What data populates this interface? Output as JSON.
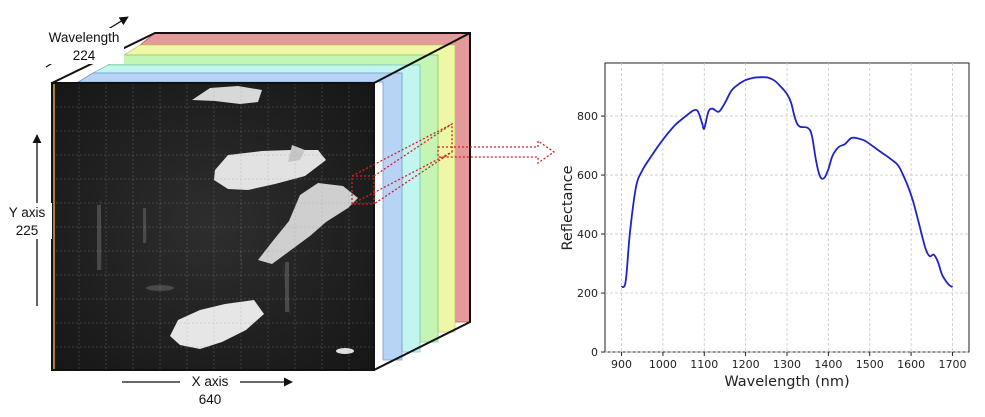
{
  "cube": {
    "wavelength_label": "Wavelength",
    "wavelength_count": "224",
    "y_axis_label": "Y axis",
    "y_axis_count": "225",
    "x_axis_label": "X axis",
    "x_axis_count": "640",
    "band_colors": [
      "#e49a9a",
      "#eef7a6",
      "#c4f5b4",
      "#c3f5f0",
      "#b7d4f7"
    ]
  },
  "chart_data": {
    "type": "line",
    "title": "",
    "xlabel": "Wavelength (nm)",
    "ylabel": "Reflectance",
    "xlim": [
      860,
      1740
    ],
    "ylim": [
      0,
      980
    ],
    "xticks": [
      900,
      1000,
      1100,
      1200,
      1300,
      1400,
      1500,
      1600,
      1700
    ],
    "yticks": [
      0,
      200,
      400,
      600,
      800
    ],
    "grid": true,
    "series": [
      {
        "color": "#1f22c8",
        "x": [
          900,
          910,
          920,
          935,
          950,
          970,
          1000,
          1030,
          1060,
          1075,
          1085,
          1095,
          1100,
          1110,
          1120,
          1135,
          1150,
          1165,
          1180,
          1200,
          1220,
          1240,
          1255,
          1270,
          1285,
          1300,
          1310,
          1320,
          1330,
          1350,
          1360,
          1370,
          1380,
          1390,
          1400,
          1410,
          1425,
          1440,
          1455,
          1470,
          1490,
          1510,
          1530,
          1550,
          1570,
          1590,
          1605,
          1620,
          1635,
          1645,
          1655,
          1665,
          1675,
          1690,
          1700
        ],
        "y": [
          220,
          240,
          400,
          560,
          615,
          660,
          720,
          770,
          805,
          820,
          815,
          775,
          758,
          815,
          825,
          815,
          845,
          885,
          905,
          922,
          930,
          932,
          930,
          920,
          900,
          875,
          845,
          790,
          765,
          760,
          735,
          650,
          595,
          590,
          620,
          665,
          695,
          705,
          725,
          725,
          715,
          695,
          675,
          655,
          630,
          570,
          510,
          430,
          350,
          325,
          330,
          305,
          262,
          230,
          220
        ]
      }
    ]
  }
}
